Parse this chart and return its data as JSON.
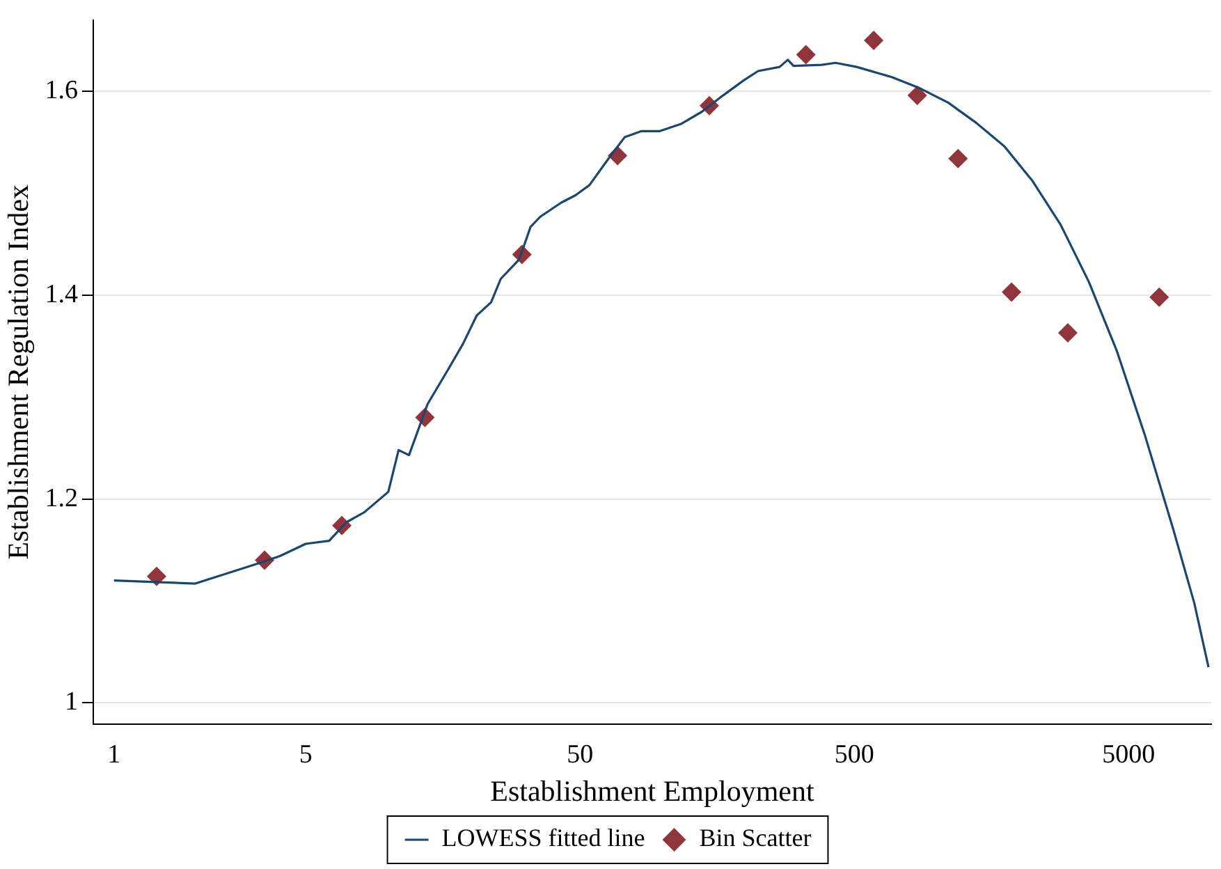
{
  "chart_data": {
    "type": "scatter",
    "xlabel": "Establishment Employment",
    "ylabel": "Establishment Regulation Index",
    "log": "x",
    "xlim": [
      0.84,
      10000
    ],
    "xticks": [
      1,
      5,
      50,
      500,
      5000
    ],
    "ylim": [
      0.979,
      1.67
    ],
    "yticks": [
      1,
      1.2,
      1.4,
      1.6
    ],
    "grid": "y",
    "legend": "bottom",
    "series": [
      {
        "name": "LOWESS fitted line",
        "type": "line",
        "color": "#1a476f",
        "marker": "none",
        "line_style": "solid",
        "x": [
          1,
          1.98,
          3.38,
          4.03,
          5,
          6.09,
          7.02,
          8.18,
          10,
          10.9,
          11.9,
          13.9,
          16.6,
          18.7,
          21,
          23.7,
          25.7,
          30,
          33,
          35.8,
          42.8,
          48.1,
          54.1,
          63.1,
          72.7,
          83.8,
          97.7,
          116.6,
          139,
          166,
          198,
          223,
          267,
          286,
          300,
          380,
          427,
          510,
          685,
          867,
          1099,
          1393,
          1762,
          2232,
          2826,
          3580,
          4531,
          5738,
          7274,
          8670,
          9772
        ],
        "values": [
          1.12,
          1.117,
          1.137,
          1.144,
          1.156,
          1.159,
          1.177,
          1.187,
          1.207,
          1.248,
          1.243,
          1.293,
          1.328,
          1.352,
          1.38,
          1.393,
          1.416,
          1.435,
          1.467,
          1.477,
          1.491,
          1.498,
          1.508,
          1.533,
          1.555,
          1.561,
          1.561,
          1.568,
          1.58,
          1.596,
          1.611,
          1.62,
          1.624,
          1.631,
          1.625,
          1.626,
          1.628,
          1.624,
          1.614,
          1.603,
          1.589,
          1.569,
          1.546,
          1.512,
          1.469,
          1.413,
          1.345,
          1.262,
          1.17,
          1.098,
          1.035
        ]
      },
      {
        "name": "Bin Scatter",
        "color": "#90353b",
        "marker": "diamond",
        "x": [
          1.43,
          3.54,
          6.77,
          13.6,
          30.7,
          68.5,
          148,
          333,
          588,
          848,
          1194,
          1870,
          3000,
          6460
        ],
        "values": [
          1.124,
          1.14,
          1.174,
          1.28,
          1.44,
          1.537,
          1.586,
          1.636,
          1.65,
          1.596,
          1.534,
          1.403,
          1.363,
          1.398
        ]
      }
    ]
  }
}
